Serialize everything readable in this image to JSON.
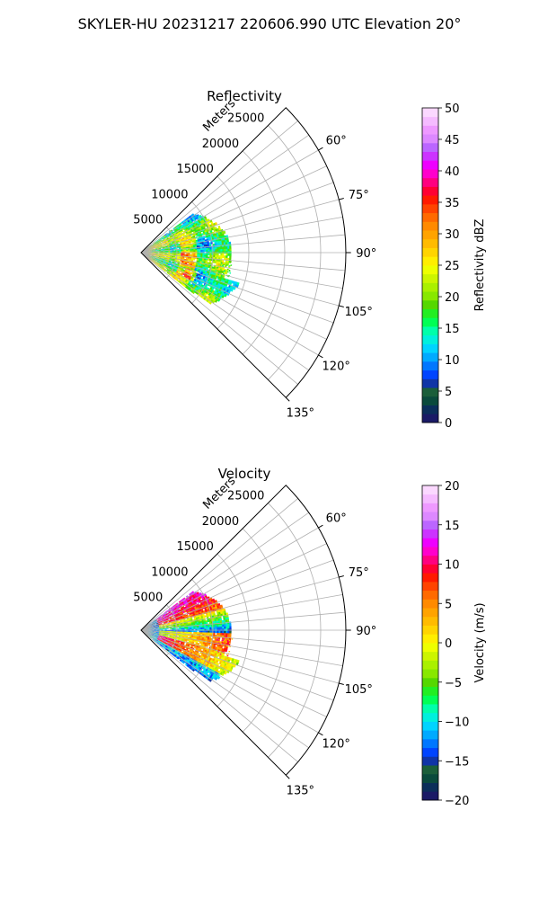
{
  "figure": {
    "title": "SKYLER-HU  20231217  220606.990 UTC Elevation 20°"
  },
  "chart_data": [
    {
      "type": "heatmap",
      "projection": "polar-sector",
      "title": "Reflectivity",
      "range_label": "Meters",
      "range_ticks": [
        5000,
        10000,
        15000,
        20000,
        25000
      ],
      "range_max": 28500,
      "azimuth_range_deg": [
        45,
        135
      ],
      "azimuth_ticks": [
        "60°",
        "75°",
        "90°",
        "105°",
        "120°",
        "135°"
      ],
      "grid": true,
      "colorbar": {
        "label": "Reflectivity dBZ",
        "vmin": 0,
        "vmax": 50,
        "ticks": [
          "0",
          "5",
          "10",
          "15",
          "20",
          "25",
          "30",
          "35",
          "40",
          "45",
          "50"
        ],
        "colormap": "HomeyerRainbow-like",
        "colors": [
          "#1a1a66",
          "#0b2e5a",
          "#0a4a3c",
          "#1b5e3a",
          "#1034a6",
          "#0044ff",
          "#0077ff",
          "#00aaff",
          "#00d4ff",
          "#00f0dd",
          "#00ffaa",
          "#00ff55",
          "#22ee22",
          "#55d800",
          "#88e800",
          "#aaf000",
          "#ccf500",
          "#eeff00",
          "#ffee00",
          "#ffd400",
          "#ffbb00",
          "#ffa300",
          "#ff8a00",
          "#ff6a00",
          "#ff4400",
          "#ff1a00",
          "#ff0033",
          "#ff0080",
          "#ff00cc",
          "#ee00ff",
          "#cc33ff",
          "#bb66ff",
          "#dd88ff",
          "#ee99ff",
          "#f5bbff",
          "#fbd8ff"
        ]
      },
      "echo_summary": {
        "azimuth_extent_deg": [
          53,
          128
        ],
        "range_extent_m": [
          0,
          12500
        ],
        "typical_dbz": [
          12,
          25
        ],
        "max_dbz": 38
      }
    },
    {
      "type": "heatmap",
      "projection": "polar-sector",
      "title": "Velocity",
      "range_label": "Meters",
      "range_ticks": [
        5000,
        10000,
        15000,
        20000,
        25000
      ],
      "range_max": 28500,
      "azimuth_range_deg": [
        45,
        135
      ],
      "azimuth_ticks": [
        "60°",
        "75°",
        "90°",
        "105°",
        "120°",
        "135°"
      ],
      "grid": true,
      "colorbar": {
        "label": "Velocity (m/s)",
        "vmin": -20,
        "vmax": 20,
        "ticks": [
          "−20",
          "−15",
          "−10",
          "−5",
          "0",
          "5",
          "10",
          "15",
          "20"
        ],
        "colormap": "HomeyerRainbow-like",
        "colors": [
          "#1a1a66",
          "#0b2e5a",
          "#0a4a3c",
          "#1b5e3a",
          "#1034a6",
          "#0044ff",
          "#0077ff",
          "#00aaff",
          "#00d4ff",
          "#00f0dd",
          "#00ffaa",
          "#00ff55",
          "#22ee22",
          "#55d800",
          "#88e800",
          "#aaf000",
          "#ccf500",
          "#eeff00",
          "#ffee00",
          "#ffd400",
          "#ffbb00",
          "#ffa300",
          "#ff8a00",
          "#ff6a00",
          "#ff4400",
          "#ff1a00",
          "#ff0033",
          "#ff0080",
          "#ff00cc",
          "#ee00ff",
          "#cc33ff",
          "#bb66ff",
          "#dd88ff",
          "#ee99ff",
          "#f5bbff",
          "#fbd8ff"
        ]
      },
      "echo_summary": {
        "azimuth_extent_deg": [
          53,
          128
        ],
        "range_extent_m": [
          0,
          12500
        ],
        "typical_ms": [
          -12,
          12
        ],
        "pattern": "outbound-inbound couplet"
      }
    }
  ]
}
